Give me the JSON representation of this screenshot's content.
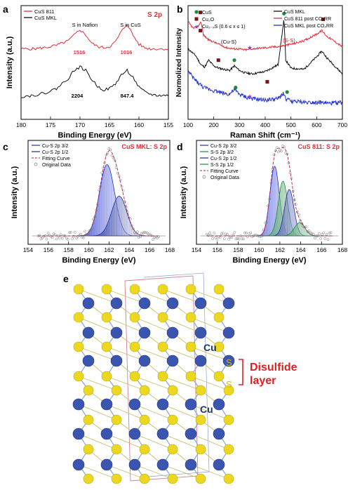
{
  "panels": {
    "a": {
      "letter": "a"
    },
    "b": {
      "letter": "b"
    },
    "c": {
      "letter": "c"
    },
    "d": {
      "letter": "d"
    },
    "e": {
      "letter": "e"
    }
  },
  "colors": {
    "red": "#e0303a",
    "black": "#111111",
    "blue": "#1e2fd0",
    "navy": "#1c2d9c",
    "green": "#1a8a3a",
    "brown": "#7a1414",
    "purple": "#8a3ad0",
    "cu_atom": "#3a55b0",
    "s_atom": "#ecd820",
    "title_red": "#e0303a",
    "annot_red": "#e02020"
  },
  "structure": {
    "cu_label_1": "Cu",
    "cu_label_2": "Cu",
    "s_label_1": "S",
    "s_label_2": "S",
    "bracket_label_1": "Disulfide",
    "bracket_label_2": "layer"
  },
  "chart_data": [
    {
      "panel": "a",
      "type": "line",
      "title": "S 2p",
      "xlabel": "Binding Energy (eV)",
      "ylabel": "Intensity (a.u.)",
      "xlim": [
        180,
        155
      ],
      "x_ticks": [
        "180",
        "175",
        "170",
        "165",
        "160",
        "155"
      ],
      "legend": [
        "CuS 811",
        "CuS MKL"
      ],
      "legend_position": "top-left",
      "annotations": [
        "S in Nafion",
        "S in CuS",
        "1516",
        "1016",
        "2204",
        "847.4"
      ],
      "series": [
        {
          "name": "CuS 811",
          "color": "red",
          "x": [
            180,
            178,
            176,
            174,
            172,
            171,
            170,
            169,
            168,
            167,
            166,
            165,
            164,
            163,
            162,
            161,
            160,
            159,
            158,
            157,
            155
          ],
          "y": [
            0.62,
            0.62,
            0.63,
            0.65,
            0.69,
            0.74,
            0.79,
            0.74,
            0.67,
            0.64,
            0.63,
            0.64,
            0.68,
            0.77,
            0.84,
            0.74,
            0.66,
            0.63,
            0.62,
            0.62,
            0.62
          ]
        },
        {
          "name": "CuS MKL",
          "color": "black",
          "x": [
            180,
            178,
            176,
            174,
            172,
            171,
            170,
            169,
            168,
            167,
            166,
            165,
            164,
            163,
            162,
            161,
            160,
            159,
            158,
            157,
            155
          ],
          "y": [
            0.2,
            0.21,
            0.23,
            0.27,
            0.36,
            0.43,
            0.46,
            0.43,
            0.35,
            0.29,
            0.26,
            0.27,
            0.31,
            0.39,
            0.43,
            0.37,
            0.28,
            0.24,
            0.22,
            0.21,
            0.21
          ]
        }
      ]
    },
    {
      "panel": "b",
      "type": "line",
      "xlabel": "Raman Shift (cm⁻¹)",
      "ylabel": "Normolized Intensity",
      "xlim": [
        100,
        700
      ],
      "x_ticks": [
        "100",
        "200",
        "300",
        "400",
        "500",
        "600",
        "700"
      ],
      "legend": [
        "CuS MKL",
        "CuS 811 post CO₂RR",
        "CuS MKL post CO₂RR"
      ],
      "legend_position": "top-right",
      "marker_legend": [
        "CuS",
        "Cu₂O",
        "Cu₂₋ₓS (0.6 ≤ x ≤ 1)"
      ],
      "annotations": [
        "(Cu-S)",
        "(S-S)"
      ],
      "series": [
        {
          "name": "CuS MKL",
          "color": "black",
          "x": [
            100,
            130,
            150,
            165,
            180,
            200,
            220,
            240,
            262,
            280,
            300,
            320,
            350,
            400,
            450,
            473,
            480,
            500,
            550,
            600,
            620,
            640,
            700
          ],
          "y": [
            0.62,
            0.56,
            0.48,
            0.46,
            0.52,
            0.47,
            0.45,
            0.44,
            0.43,
            0.47,
            0.43,
            0.41,
            0.4,
            0.42,
            0.48,
            0.88,
            0.52,
            0.45,
            0.44,
            0.55,
            0.6,
            0.54,
            0.4
          ]
        },
        {
          "name": "CuS 811 post CO₂RR",
          "color": "red",
          "x": [
            100,
            120,
            140,
            150,
            160,
            180,
            200,
            220,
            250,
            280,
            300,
            320,
            350,
            400,
            450,
            500,
            550,
            600,
            620,
            640,
            700
          ],
          "y": [
            0.86,
            0.8,
            0.82,
            0.86,
            0.74,
            0.7,
            0.68,
            0.66,
            0.63,
            0.62,
            0.62,
            0.61,
            0.62,
            0.63,
            0.64,
            0.66,
            0.69,
            0.75,
            0.78,
            0.73,
            0.64
          ]
        },
        {
          "name": "CuS MKL post CO₂RR",
          "color": "blue",
          "x": [
            100,
            130,
            160,
            190,
            220,
            260,
            280,
            300,
            330,
            350,
            400,
            450,
            470,
            480,
            500,
            550,
            600,
            650,
            700
          ],
          "y": [
            0.42,
            0.34,
            0.28,
            0.26,
            0.24,
            0.22,
            0.26,
            0.22,
            0.19,
            0.18,
            0.17,
            0.18,
            0.23,
            0.18,
            0.16,
            0.15,
            0.15,
            0.14,
            0.15
          ]
        }
      ],
      "markers": [
        {
          "kind": "CuS",
          "x": [
            280,
            473
          ],
          "y": [
            0.52,
            0.93
          ]
        },
        {
          "kind": "Cu2O",
          "x": [
            148,
            148,
            218,
            408,
            625
          ],
          "y": [
            0.94,
            0.78,
            0.52,
            0.33,
            0.88
          ]
        },
        {
          "kind": "Cu2-xS",
          "x": [
            340,
            340
          ],
          "y": [
            0.63,
            0.2
          ]
        },
        {
          "kind": "CuS",
          "x": [
            285,
            485
          ],
          "y": [
            0.28,
            0.24
          ]
        }
      ]
    },
    {
      "panel": "c",
      "type": "area",
      "title": "CuS MKL: S 2p",
      "xlabel": "Binding Energy (eV)",
      "ylabel": "Intensity (a.u.)",
      "xlim": [
        154,
        168
      ],
      "x_ticks": [
        "154",
        "156",
        "158",
        "160",
        "162",
        "164",
        "166",
        "168"
      ],
      "legend": [
        "Cu-S 2p 3/2",
        "Cu-S 2p 1/2",
        "Fitting Curve",
        "Original Data"
      ],
      "legend_position": "top-left",
      "peaks": [
        {
          "name": "Cu-S 2p 3/2",
          "center": 161.8,
          "height": 0.86,
          "width": 0.75,
          "color": "blue"
        },
        {
          "name": "Cu-S 2p 1/2",
          "center": 163.0,
          "height": 0.48,
          "width": 0.75,
          "color": "navy"
        }
      ]
    },
    {
      "panel": "d",
      "type": "area",
      "title": "CuS 811: S 2p",
      "xlabel": "Binding Energy (eV)",
      "ylabel": "Intensity (a.u.)",
      "xlim": [
        154,
        168
      ],
      "x_ticks": [
        "154",
        "156",
        "158",
        "160",
        "162",
        "164",
        "166",
        "168"
      ],
      "legend": [
        "Cu-S 2p 3/2",
        "S-S 2p 3/2",
        "Cu-S 2p 1/2",
        "S-S 2p 1/2",
        "Fitting Curve",
        "Original Data"
      ],
      "legend_position": "top-left",
      "peaks": [
        {
          "name": "Cu-S 2p 3/2",
          "center": 161.5,
          "height": 0.84,
          "width": 0.45,
          "color": "blue"
        },
        {
          "name": "S-S 2p 3/2",
          "center": 162.3,
          "height": 0.66,
          "width": 0.45,
          "color": "green"
        },
        {
          "name": "Cu-S 2p 1/2",
          "center": 162.9,
          "height": 0.56,
          "width": 0.45,
          "color": "navy"
        },
        {
          "name": "S-S 2p 1/2",
          "center": 163.9,
          "height": 0.16,
          "width": 0.5,
          "color": "green"
        }
      ]
    }
  ]
}
